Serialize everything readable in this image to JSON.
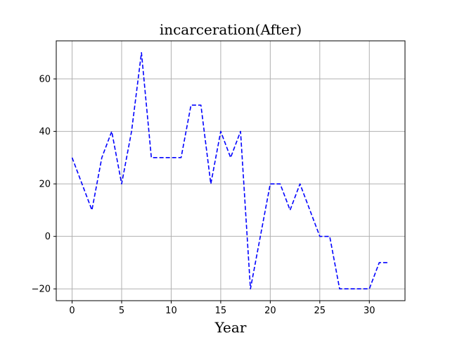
{
  "chart_data": {
    "type": "line",
    "title": "incarceration(After)",
    "xlabel": "Year",
    "ylabel": "",
    "xlim": [
      -1.6,
      33.6
    ],
    "ylim": [
      -24.5,
      74.5
    ],
    "grid": true,
    "x_ticks": [
      0,
      5,
      10,
      15,
      20,
      25,
      30
    ],
    "y_ticks": [
      -20,
      0,
      20,
      40,
      60
    ],
    "x_tick_labels": [
      "0",
      "5",
      "10",
      "15",
      "20",
      "25",
      "30"
    ],
    "y_tick_labels": [
      "−20",
      "0",
      "20",
      "40",
      "60"
    ],
    "series": [
      {
        "color": "#0000ff",
        "line_style": "dashed",
        "x": [
          0,
          1,
          2,
          3,
          4,
          5,
          6,
          7,
          8,
          9,
          10,
          11,
          12,
          13,
          14,
          15,
          16,
          17,
          18,
          19,
          20,
          21,
          22,
          23,
          24,
          25,
          26,
          27,
          28,
          29,
          30,
          31,
          32
        ],
        "values": [
          30,
          20,
          10,
          30,
          40,
          20,
          40,
          70,
          30,
          30,
          30,
          30,
          50,
          50,
          20,
          40,
          30,
          40,
          -20,
          0,
          20,
          20,
          10,
          20,
          10,
          0,
          0,
          -20,
          -20,
          -20,
          -20,
          -10,
          -10
        ]
      }
    ]
  }
}
